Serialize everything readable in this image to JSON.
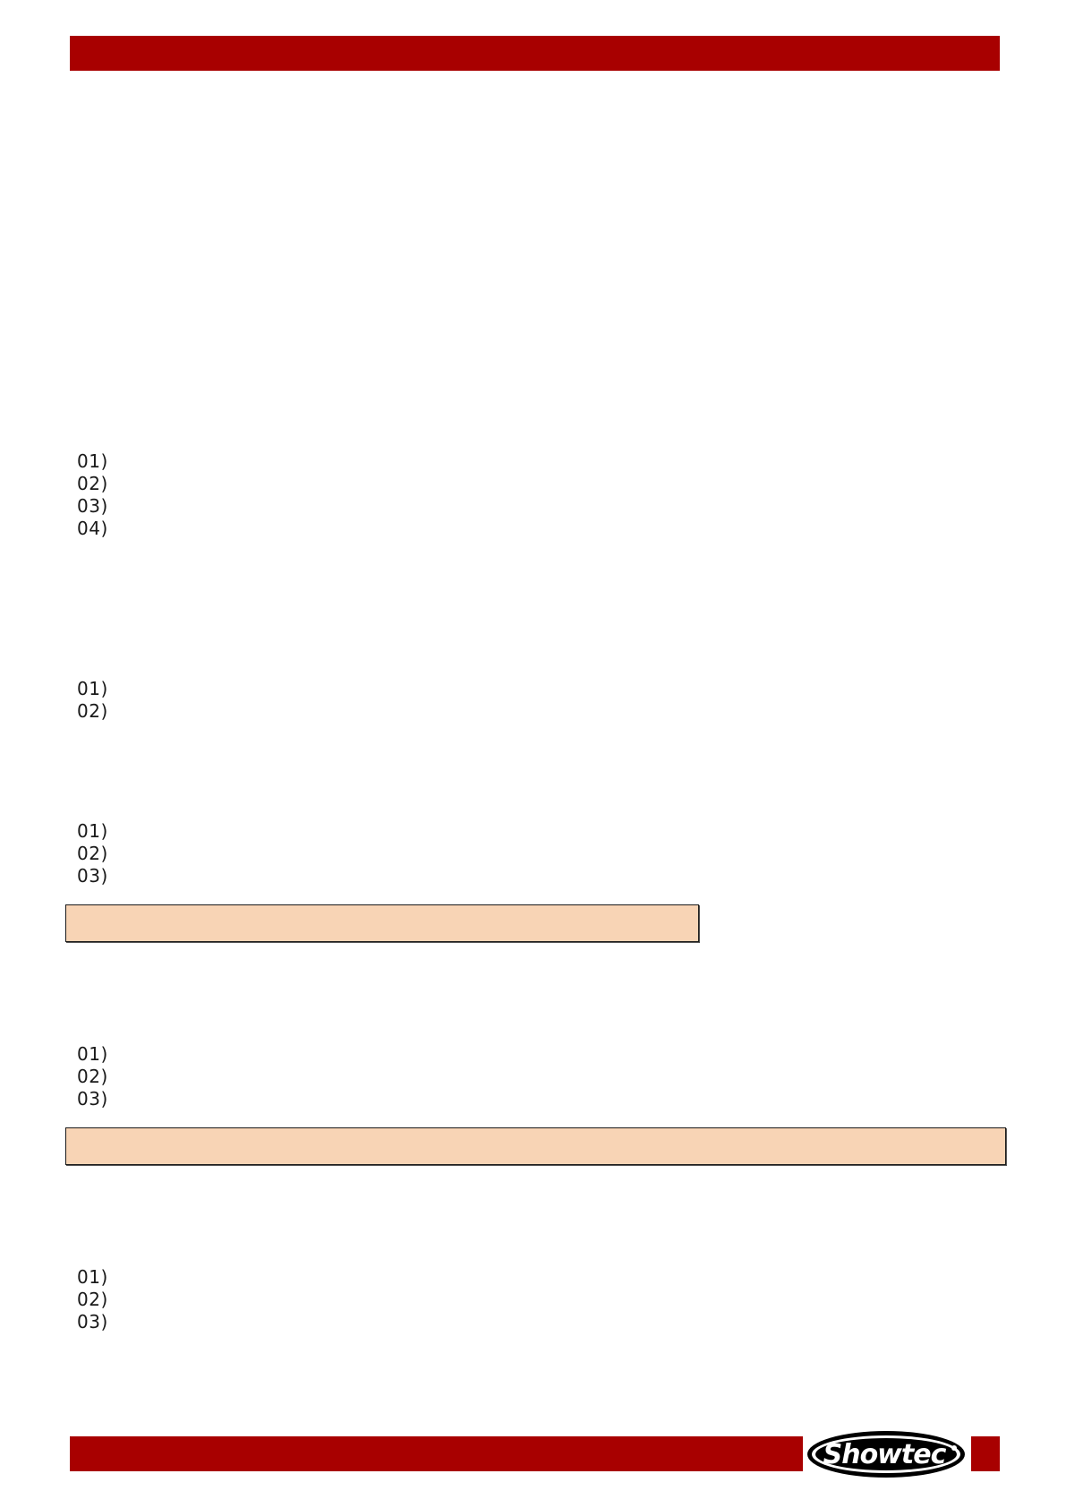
{
  "lists": [
    {
      "items": [
        "01)",
        "02)",
        "03)",
        "04)"
      ]
    },
    {
      "items": [
        "01)",
        "02)"
      ]
    },
    {
      "items": [
        "01)",
        "02)",
        "03)"
      ]
    },
    {
      "items": [
        "01)",
        "02)",
        "03)"
      ]
    },
    {
      "items": [
        "01)",
        "02)",
        "03)"
      ]
    }
  ],
  "footer": {
    "logo_text": "Showtec"
  },
  "colors": {
    "brand_red": "#a80000",
    "note_fill": "#f8d4b5"
  }
}
